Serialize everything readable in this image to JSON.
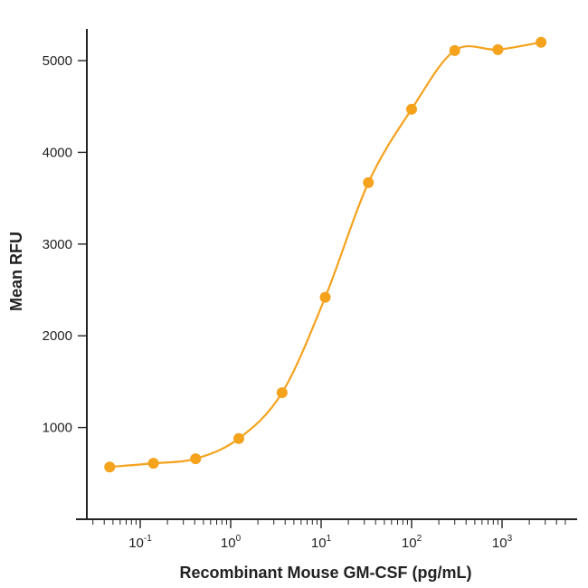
{
  "chart_data": {
    "type": "scatter",
    "title": "",
    "xlabel": "Recombinant Mouse GM-CSF (pg/mL)",
    "ylabel": "Mean RFU",
    "x_scale": "log",
    "xlim": [
      0.03,
      5000
    ],
    "ylim": [
      0,
      5400
    ],
    "y_ticks": [
      1000,
      2000,
      3000,
      4000,
      5000
    ],
    "x_tick_labels": [
      {
        "base": "10",
        "exp": "-1",
        "value": 0.1
      },
      {
        "base": "10",
        "exp": "0",
        "value": 1
      },
      {
        "base": "10",
        "exp": "1",
        "value": 10
      },
      {
        "base": "10",
        "exp": "2",
        "value": 100
      },
      {
        "base": "10",
        "exp": "3",
        "value": 1000
      }
    ],
    "grid": false,
    "color": "#F5A21D",
    "series": [
      {
        "x": [
          0.046,
          0.14,
          0.41,
          1.23,
          3.7,
          11.1,
          33.3,
          100,
          300,
          900,
          2700
        ],
        "y": [
          570,
          610,
          660,
          880,
          1380,
          2420,
          3670,
          4470,
          5110,
          5120,
          5200
        ]
      }
    ],
    "fit_curve": true
  }
}
